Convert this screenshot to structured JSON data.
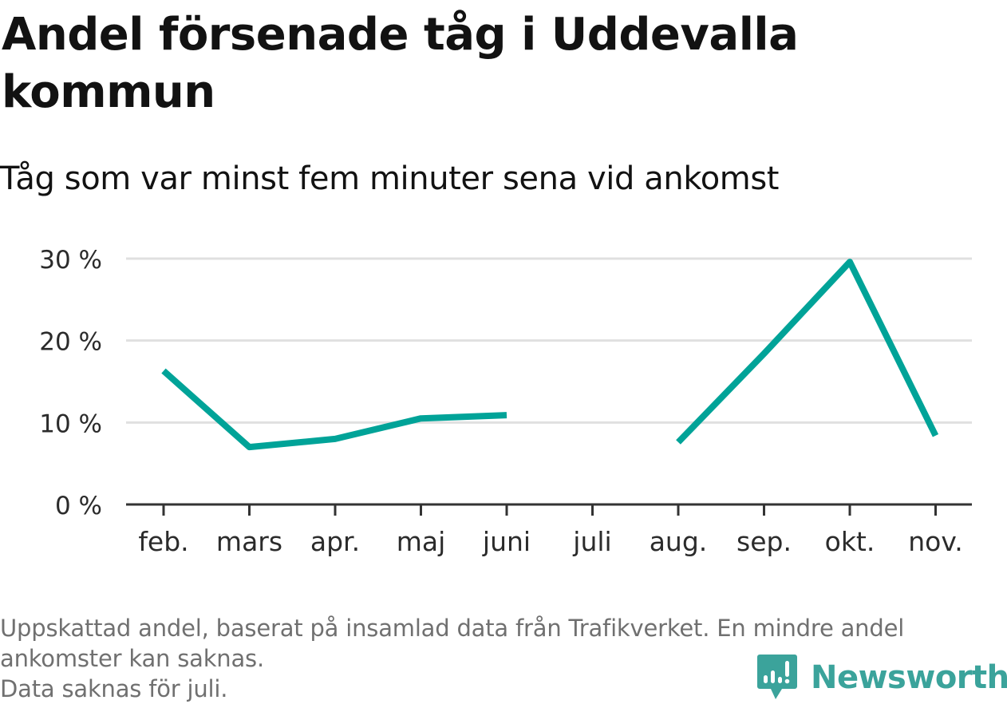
{
  "title_line1": "Andel försenade tåg i Uddevalla",
  "title_line2": "kommun",
  "subtitle": "Tåg som var minst fem minuter sena vid ankomst",
  "footer": {
    "line1": "Uppskattad andel, baserat på insamlad data från Trafikverket. En mindre andel",
    "line2": "ankomster kan saknas.",
    "line3": "Data saknas för juli."
  },
  "brand": {
    "name": "Newsworthy",
    "icon": "newsworthy-bar-chart-bubble-icon",
    "color": "#3ba39b"
  },
  "chart_data": {
    "type": "line",
    "categories": [
      "feb.",
      "mars",
      "apr.",
      "maj",
      "juni",
      "juli",
      "aug.",
      "sep.",
      "okt.",
      "nov."
    ],
    "series": [
      {
        "values": [
          16.3,
          7.0,
          8.0,
          10.5,
          10.9,
          null,
          7.6,
          18.4,
          29.6,
          8.4
        ],
        "color": "#00a398"
      }
    ],
    "yticks": [
      0,
      10,
      20,
      30
    ],
    "ytick_labels": [
      "0 %",
      "10 %",
      "20 %",
      "30 %"
    ],
    "ylim": [
      0,
      30
    ],
    "grid": true,
    "xlabel": "",
    "ylabel": ""
  }
}
